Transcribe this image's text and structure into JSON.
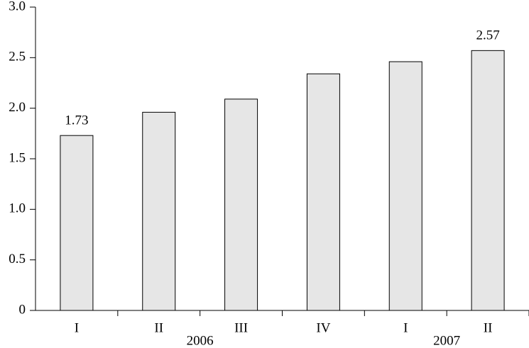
{
  "chart_data": {
    "type": "bar",
    "categories": [
      "I",
      "II",
      "III",
      "IV",
      "I",
      "II"
    ],
    "x_groups": [
      "2006",
      "2006",
      "2006",
      "2006",
      "2007",
      "2007"
    ],
    "values": [
      1.73,
      1.96,
      2.09,
      2.34,
      2.46,
      2.57
    ],
    "value_labels": [
      "1.73",
      null,
      null,
      null,
      null,
      "2.57"
    ],
    "color": "#e6e6e6",
    "ylim": [
      0,
      3
    ],
    "yticks": [
      0,
      0.5,
      {
        "value": 1,
        "label": "1.0"
      },
      1.5,
      {
        "value": 2,
        "label": "2.0"
      },
      2.5,
      {
        "value": 3,
        "label": "3.0"
      }
    ],
    "grid": false
  }
}
